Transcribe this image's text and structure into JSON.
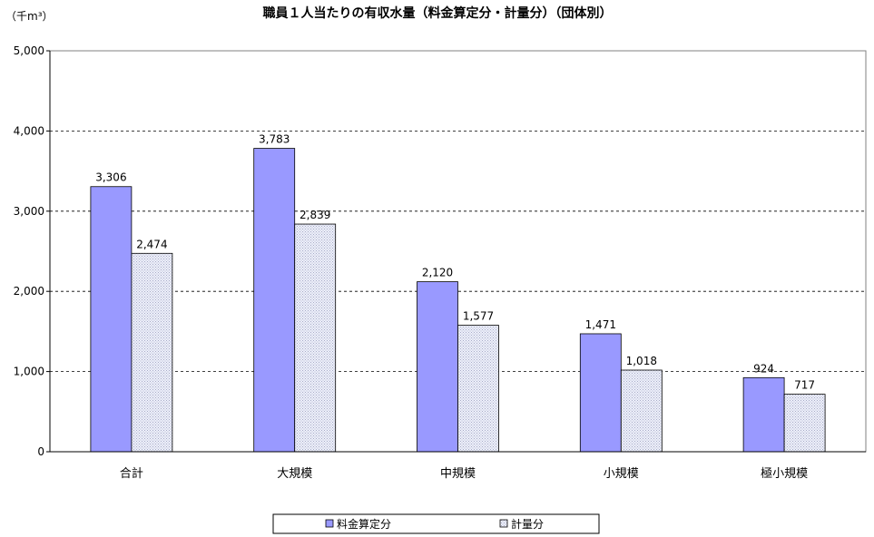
{
  "chart_data": {
    "type": "bar",
    "title": "職員１人当たりの有収水量（料金算定分・計量分）（団体別）",
    "unit_label": "（千m³）",
    "categories": [
      "合計",
      "大規模",
      "中規模",
      "小規模",
      "極小規模"
    ],
    "series": [
      {
        "name": "料金算定分",
        "values": [
          3306,
          3783,
          2120,
          1471,
          924
        ],
        "color": "#9999ff",
        "pattern": "solid"
      },
      {
        "name": "計量分",
        "values": [
          2474,
          2839,
          1577,
          1018,
          717
        ],
        "color": "#dde0f0",
        "pattern": "dotted"
      }
    ],
    "value_labels": [
      [
        "3,306",
        "3,783",
        "2,120",
        "1,471",
        "924"
      ],
      [
        "2,474",
        "2,839",
        "1,577",
        "1,018",
        "717"
      ]
    ],
    "ylim": [
      0,
      5000
    ],
    "yticks": [
      0,
      1000,
      2000,
      3000,
      4000,
      5000
    ],
    "ytick_labels": [
      "0",
      "1,000",
      "2,000",
      "3,000",
      "4,000",
      "5,000"
    ],
    "grid": "dashed horizontal",
    "legend_position": "bottom"
  }
}
